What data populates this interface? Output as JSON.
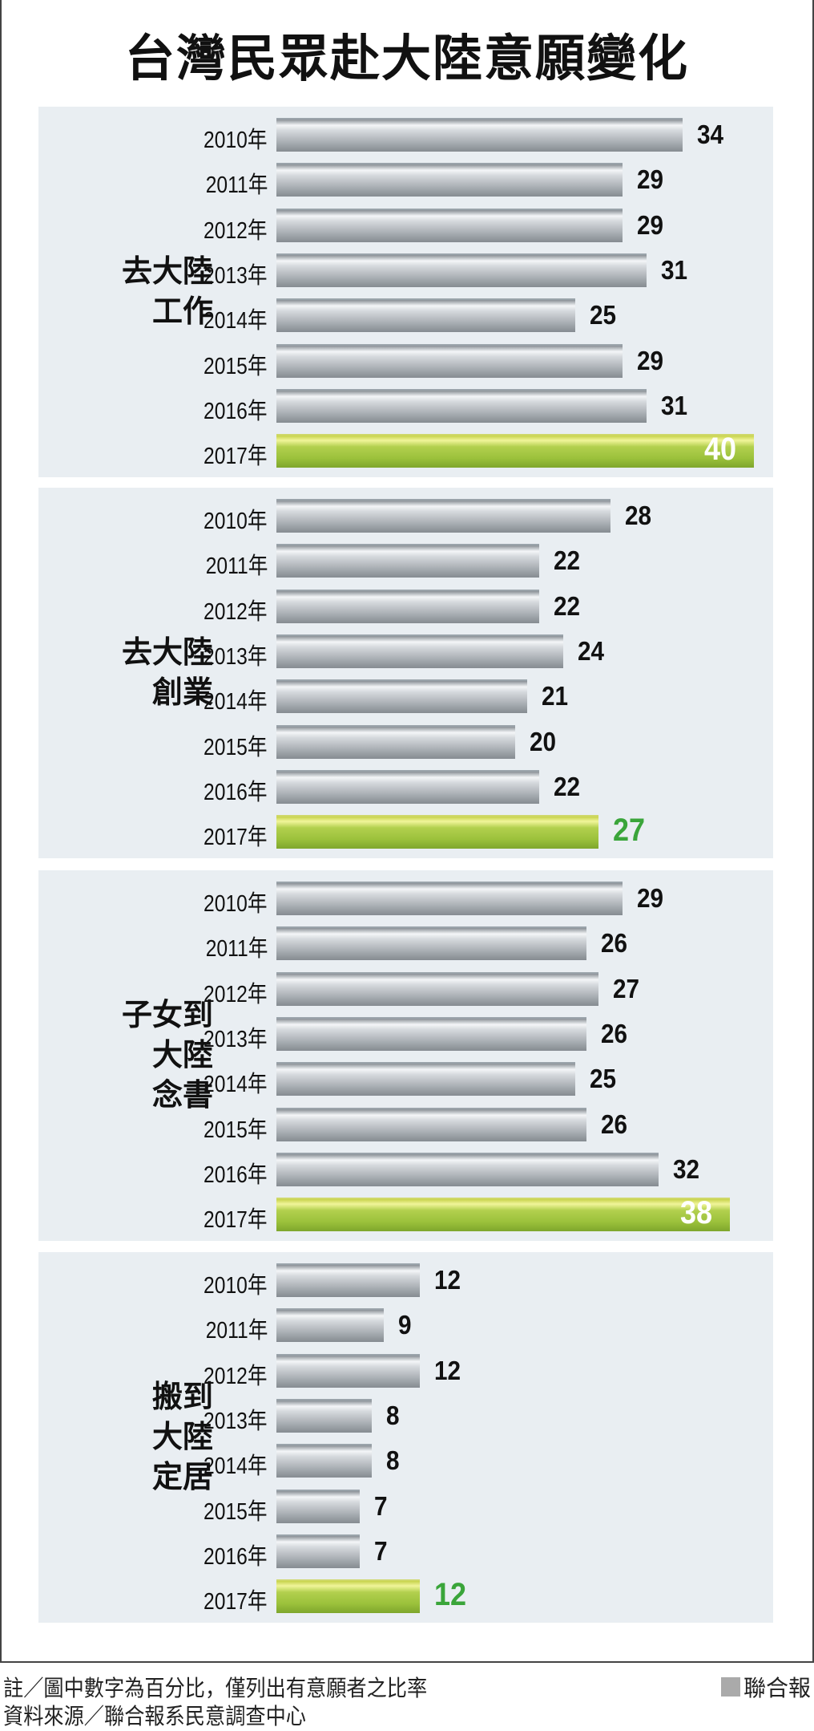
{
  "chart_data": {
    "type": "bar",
    "orientation": "horizontal",
    "title": "台灣民眾赴大陸意願變化",
    "unit": "%",
    "categories": [
      "2010年",
      "2011年",
      "2012年",
      "2013年",
      "2014年",
      "2015年",
      "2016年",
      "2017年"
    ],
    "highlight_category": "2017年",
    "series": [
      {
        "name": "去大陸工作",
        "label_lines": [
          "去大陸",
          "工作"
        ],
        "values": [
          34,
          29,
          29,
          31,
          25,
          29,
          31,
          40
        ]
      },
      {
        "name": "去大陸創業",
        "label_lines": [
          "去大陸",
          "創業"
        ],
        "values": [
          28,
          22,
          22,
          24,
          21,
          20,
          22,
          27
        ]
      },
      {
        "name": "子女到大陸念書",
        "label_lines": [
          "子女到",
          "大陸",
          "念書"
        ],
        "values": [
          29,
          26,
          27,
          26,
          25,
          26,
          32,
          38
        ]
      },
      {
        "name": "搬到大陸定居",
        "label_lines": [
          "搬到",
          "大陸",
          "定居"
        ],
        "values": [
          12,
          9,
          12,
          8,
          8,
          7,
          7,
          12
        ]
      }
    ],
    "xlim": [
      0,
      40
    ],
    "grid": false,
    "colors": {
      "bar": "#b0b5ba",
      "highlight": "#9cc23c",
      "highlight_label": "#3aa53a",
      "panel": "#e9eef2"
    }
  },
  "footer": {
    "note": "註／圖中數字為百分比，僅列出有意願者之比率",
    "source": "資料來源／聯合報系民意調查中心",
    "brand": "聯合報"
  }
}
